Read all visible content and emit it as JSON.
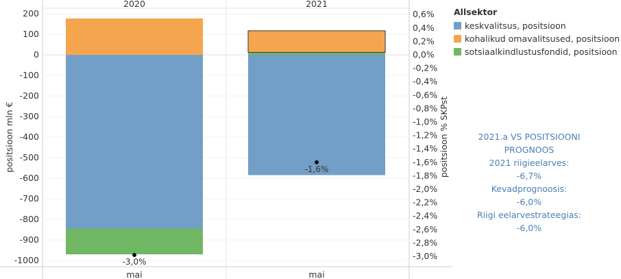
{
  "chart_data": {
    "type": "bar",
    "stacked": true,
    "columns": [
      "2020",
      "2021"
    ],
    "categories": [
      "mai",
      "mai"
    ],
    "ylabel_left": "positsioon mln €",
    "ylabel_right": "positsioon % SKPst",
    "ylim_left": [
      -1000,
      200
    ],
    "left_ticks": [
      "200",
      "100",
      "0",
      "-100",
      "-200",
      "-300",
      "-400",
      "-500",
      "-600",
      "-700",
      "-800",
      "-900",
      "-1000"
    ],
    "right_ticks": [
      "0,6%",
      "0,4%",
      "0,2%",
      "0,0%",
      "-0,2%",
      "-0,4%",
      "-0,6%",
      "-0,8%",
      "-1,0%",
      "-1,2%",
      "-1,4%",
      "-1,6%",
      "-1,8%",
      "-2,0%",
      "-2,2%",
      "-2,4%",
      "-2,6%",
      "-2,8%",
      "-3,0%"
    ],
    "ylim_right": [
      -3.0,
      0.6
    ],
    "series": [
      {
        "name": "keskvalitsus, positsioon",
        "color": "#729fc7",
        "values": [
          -845,
          -585
        ]
      },
      {
        "name": "sotsiaalkindlustusfondid, positsioon",
        "color": "#6fb762",
        "values": [
          -125,
          12
        ]
      },
      {
        "name": "kohalikud omavalitsused, positsioon",
        "color": "#f6a54f",
        "values": [
          177,
          105
        ]
      }
    ],
    "pct_values": [
      -3.0,
      -1.6
    ],
    "pct_labels": [
      "-3,0%",
      "-1,6%"
    ],
    "legend_title": "Allsektor",
    "legend_order": [
      "keskvalitsus, positsioon",
      "kohalikud omavalitsused, positsioon",
      "sotsiaalkindlustusfondid, positsioon"
    ]
  },
  "note": {
    "lines": [
      "2021.a VS POSITSIOONI PROGNOOS",
      "2021 riigieelarves:",
      "-6,7%",
      "Kevadprognoosis:",
      "-6,0%",
      "Riigi eelarvestrateegias:",
      "-6,0%"
    ]
  }
}
